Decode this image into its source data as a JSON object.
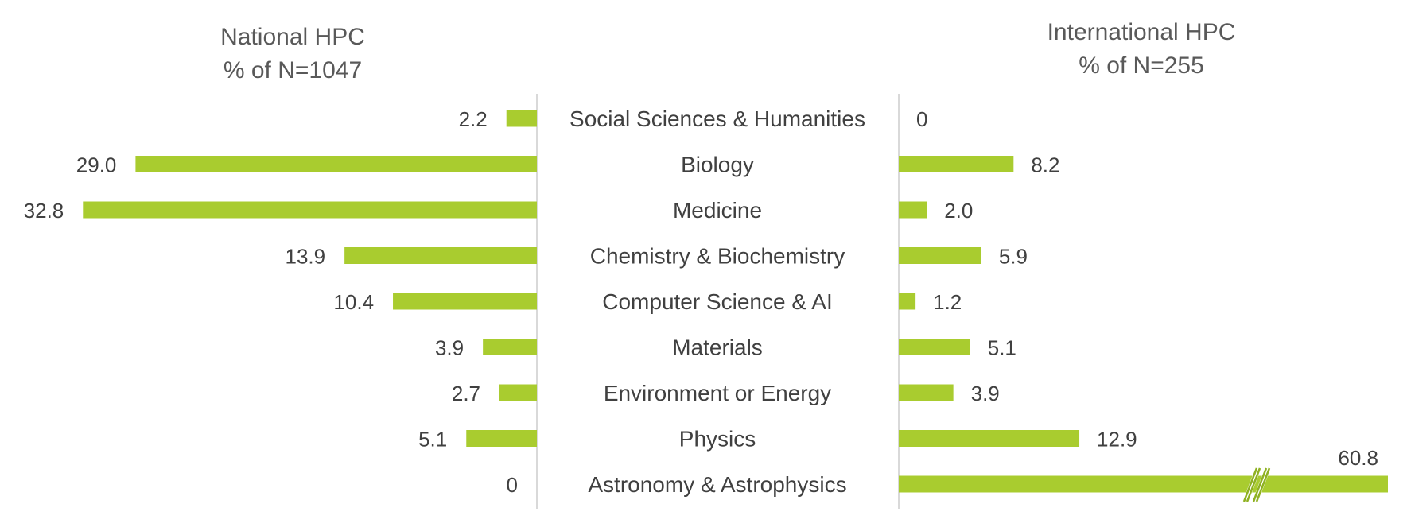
{
  "chart_data": {
    "type": "bar",
    "orientation": "horizontal",
    "layout": "diverging-butterfly",
    "categories": [
      "Social Sciences & Humanities",
      "Biology",
      "Medicine",
      "Chemistry & Biochemistry",
      "Computer Science & AI",
      "Materials",
      "Environment or Energy",
      "Physics",
      "Astronomy & Astrophysics"
    ],
    "series": [
      {
        "name": "National HPC",
        "title_lines": [
          "National HPC",
          "% of N=1047"
        ],
        "values": [
          2.2,
          29.0,
          32.8,
          13.9,
          10.4,
          3.9,
          2.7,
          5.1,
          0
        ],
        "labels": [
          "2.2",
          "29.0",
          "32.8",
          "13.9",
          "10.4",
          "3.9",
          "2.7",
          "5.1",
          "0"
        ],
        "direction": "left"
      },
      {
        "name": "International HPC",
        "title_lines": [
          "International HPC",
          "% of N=255"
        ],
        "values": [
          0,
          8.2,
          2.0,
          5.9,
          1.2,
          5.1,
          3.9,
          12.9,
          60.8
        ],
        "labels": [
          "0",
          "8.2",
          "2.0",
          "5.9",
          "1.2",
          "5.1",
          "3.9",
          "12.9",
          "60.8"
        ],
        "direction": "right",
        "axis_break_on": "Astronomy & Astrophysics"
      }
    ],
    "unit": "%",
    "bar_color": "#a9cc2f",
    "axis_color": "#d9d9d9",
    "text_color": "#404040",
    "title_color": "#595959",
    "grid": false
  }
}
